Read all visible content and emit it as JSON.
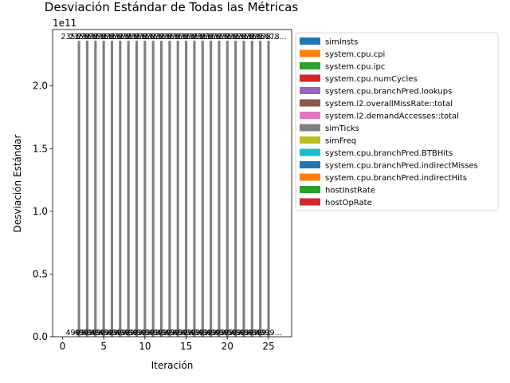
{
  "chart_data": {
    "type": "bar",
    "title": "Desviación Estándar de Todas las Métricas",
    "xlabel": "Iteración",
    "ylabel": "Desviación Estándar",
    "y_offset_label": "1e11",
    "xlim": [
      -1.2,
      27.8
    ],
    "ylim": [
      0,
      245000000000.0
    ],
    "x_ticks": [
      0,
      5,
      10,
      15,
      20,
      25
    ],
    "x_tick_labels": [
      "0",
      "5",
      "10",
      "15",
      "20",
      "25"
    ],
    "y_ticks": [
      0,
      50000000000.0,
      100000000000.0,
      150000000000.0,
      200000000000.0
    ],
    "y_tick_labels": [
      "0.0",
      "0.5",
      "1.0",
      "1.5",
      "2.0"
    ],
    "iterations": [
      2,
      3,
      4,
      5,
      6,
      7,
      8,
      9,
      10,
      11,
      12,
      13,
      14,
      15,
      16,
      17,
      18,
      19,
      20,
      21,
      22,
      23,
      24,
      25
    ],
    "series": [
      {
        "name": "simInsts",
        "color": "#1f77b4",
        "values": [
          0,
          0,
          0,
          0,
          0,
          0,
          0,
          0,
          0,
          0,
          0,
          0,
          0,
          0,
          0,
          0,
          0,
          0,
          0,
          0,
          0,
          0,
          0,
          0
        ]
      },
      {
        "name": "system.cpu.cpi",
        "color": "#ff7f0e",
        "values": [
          0,
          0,
          0,
          0,
          0,
          0,
          0,
          0,
          0,
          0,
          0,
          0,
          0,
          0,
          0,
          0,
          0,
          0,
          0,
          0,
          0,
          0,
          0,
          0
        ]
      },
      {
        "name": "system.cpu.ipc",
        "color": "#2ca02c",
        "values": [
          0,
          0,
          0,
          0,
          0,
          0,
          0,
          0,
          0,
          0,
          0,
          0,
          0,
          0,
          0,
          0,
          0,
          0,
          0,
          0,
          0,
          0,
          0,
          0
        ]
      },
      {
        "name": "system.cpu.numCycles",
        "color": "#d62728",
        "values": [
          0,
          0,
          0,
          0,
          0,
          0,
          0,
          0,
          0,
          0,
          0,
          0,
          0,
          0,
          0,
          0,
          0,
          0,
          0,
          0,
          0,
          0,
          0,
          0
        ]
      },
      {
        "name": "system.cpu.branchPred.lookups",
        "color": "#9467bd",
        "values": [
          0,
          0,
          0,
          0,
          0,
          0,
          0,
          0,
          0,
          0,
          0,
          0,
          0,
          0,
          0,
          0,
          0,
          0,
          0,
          0,
          0,
          0,
          0,
          0
        ]
      },
      {
        "name": "system.l2.overallMissRate::total",
        "color": "#8c564b",
        "values": [
          0,
          0,
          0,
          0,
          0,
          0,
          0,
          0,
          0,
          0,
          0,
          0,
          0,
          0,
          0,
          0,
          0,
          0,
          0,
          0,
          0,
          0,
          0,
          0
        ]
      },
      {
        "name": "system.l2.demandAccesses::total",
        "color": "#e377c2",
        "values": [
          0,
          0,
          0,
          0,
          0,
          0,
          0,
          0,
          0,
          0,
          0,
          0,
          0,
          0,
          0,
          0,
          0,
          0,
          0,
          0,
          0,
          0,
          0,
          0
        ]
      },
      {
        "name": "simTicks",
        "color": "#7f7f7f",
        "values": [
          236000000000.0,
          236000000000.0,
          236000000000.0,
          236000000000.0,
          236000000000.0,
          236000000000.0,
          236000000000.0,
          236000000000.0,
          236000000000.0,
          236000000000.0,
          236000000000.0,
          236000000000.0,
          236000000000.0,
          236000000000.0,
          236000000000.0,
          236000000000.0,
          236000000000.0,
          236000000000.0,
          236000000000.0,
          236000000000.0,
          236000000000.0,
          236000000000.0,
          236000000000.0,
          236000000000.0
        ]
      },
      {
        "name": "simFreq",
        "color": "#bcbd22",
        "values": [
          0,
          0,
          0,
          0,
          0,
          0,
          0,
          0,
          0,
          0,
          0,
          0,
          0,
          0,
          0,
          0,
          0,
          0,
          0,
          0,
          0,
          0,
          0,
          0
        ]
      },
      {
        "name": "system.cpu.branchPred.BTBHits",
        "color": "#17becf",
        "values": [
          0,
          0,
          0,
          0,
          0,
          0,
          0,
          0,
          0,
          0,
          0,
          0,
          0,
          0,
          0,
          0,
          0,
          0,
          0,
          0,
          0,
          0,
          0,
          0
        ]
      },
      {
        "name": "system.cpu.branchPred.indirectMisses",
        "color": "#1f77b4",
        "values": [
          0,
          0,
          0,
          0,
          0,
          0,
          0,
          0,
          0,
          0,
          0,
          0,
          0,
          0,
          0,
          0,
          0,
          0,
          0,
          0,
          0,
          0,
          0,
          0
        ]
      },
      {
        "name": "system.cpu.branchPred.indirectHits",
        "color": "#ff7f0e",
        "values": [
          0,
          0,
          0,
          0,
          0,
          0,
          0,
          0,
          0,
          0,
          0,
          0,
          0,
          0,
          0,
          0,
          0,
          0,
          0,
          0,
          0,
          0,
          0,
          0
        ]
      },
      {
        "name": "hostInstRate",
        "color": "#2ca02c",
        "values": [
          0,
          0,
          0,
          0,
          0,
          0,
          0,
          0,
          0,
          0,
          0,
          0,
          0,
          0,
          0,
          0,
          0,
          0,
          0,
          0,
          0,
          0,
          0,
          0
        ]
      },
      {
        "name": "hostOpRate",
        "color": "#d62728",
        "values": [
          0,
          0,
          0,
          0,
          0,
          0,
          0,
          0,
          0,
          0,
          0,
          0,
          0,
          0,
          0,
          0,
          0,
          0,
          0,
          0,
          0,
          0,
          0,
          0
        ]
      }
    ],
    "bar_width": 0.3,
    "data_label_top": "235678...",
    "data_label_bottom": "4999...",
    "legend_position": "upper-right, outside plot area",
    "grid": false
  }
}
